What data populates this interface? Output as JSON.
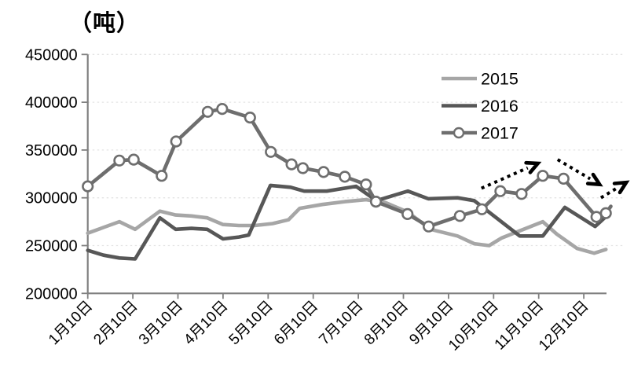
{
  "chart_data": {
    "type": "line",
    "title": "（吨）",
    "y_axis": {
      "min": 200000,
      "max": 450000,
      "tick_step": 50000,
      "tick_labels": [
        "200000",
        "250000",
        "300000",
        "350000",
        "400000",
        "450000"
      ],
      "gridlines": "dashed, at each 50000 above axis"
    },
    "x_axis": {
      "tick_labels": [
        "1月10日",
        "2月10日",
        "3月10日",
        "4月10日",
        "5月10日",
        "6月10日",
        "7月10日",
        "8月10日",
        "9月10日",
        "10月10日",
        "11月10日",
        "12月10日"
      ],
      "x_unit": "m = month index, m=n means n月10日 tick position"
    },
    "legend": {
      "position": "inside-upper-right",
      "entries": [
        "2015",
        "2016",
        "2017"
      ]
    },
    "colors": {
      "series2015": "#a6a6a6",
      "series2016": "#575757",
      "series2017": "#6e6e6e",
      "axis": "#808080",
      "gridline": "#e4e4e4",
      "text": "#000000",
      "arrow": "#000000",
      "marker_fill": "#ffffff"
    },
    "series": [
      {
        "name": "2015",
        "color": "#a6a6a6",
        "marker": "none",
        "points": [
          {
            "m": 1.0,
            "v": 263000
          },
          {
            "m": 1.35,
            "v": 269000
          },
          {
            "m": 1.7,
            "v": 275000
          },
          {
            "m": 2.05,
            "v": 267000
          },
          {
            "m": 2.6,
            "v": 286000
          },
          {
            "m": 2.95,
            "v": 282000
          },
          {
            "m": 3.3,
            "v": 281000
          },
          {
            "m": 3.65,
            "v": 279000
          },
          {
            "m": 4.0,
            "v": 272000
          },
          {
            "m": 4.35,
            "v": 271000
          },
          {
            "m": 4.7,
            "v": 271000
          },
          {
            "m": 5.1,
            "v": 273000
          },
          {
            "m": 5.45,
            "v": 277000
          },
          {
            "m": 5.7,
            "v": 289000
          },
          {
            "m": 6.2,
            "v": 293000
          },
          {
            "m": 6.7,
            "v": 296000
          },
          {
            "m": 7.17,
            "v": 298000
          },
          {
            "m": 7.6,
            "v": 295000
          },
          {
            "m": 8.1,
            "v": 285000
          },
          {
            "m": 8.6,
            "v": 267000
          },
          {
            "m": 9.2,
            "v": 260000
          },
          {
            "m": 9.57,
            "v": 252000
          },
          {
            "m": 9.9,
            "v": 250000
          },
          {
            "m": 10.18,
            "v": 258000
          },
          {
            "m": 11.09,
            "v": 275000
          },
          {
            "m": 11.4,
            "v": 262000
          },
          {
            "m": 11.85,
            "v": 247000
          },
          {
            "m": 12.23,
            "v": 242000
          },
          {
            "m": 12.49,
            "v": 246000
          }
        ]
      },
      {
        "name": "2016",
        "color": "#575757",
        "marker": "none",
        "points": [
          {
            "m": 1.0,
            "v": 245000
          },
          {
            "m": 1.35,
            "v": 240000
          },
          {
            "m": 1.7,
            "v": 237000
          },
          {
            "m": 2.05,
            "v": 236000
          },
          {
            "m": 2.6,
            "v": 279000
          },
          {
            "m": 2.95,
            "v": 267000
          },
          {
            "m": 3.3,
            "v": 268000
          },
          {
            "m": 3.65,
            "v": 267000
          },
          {
            "m": 4.0,
            "v": 257000
          },
          {
            "m": 4.35,
            "v": 259000
          },
          {
            "m": 4.57,
            "v": 261000
          },
          {
            "m": 5.05,
            "v": 313000
          },
          {
            "m": 5.5,
            "v": 311000
          },
          {
            "m": 5.8,
            "v": 307000
          },
          {
            "m": 6.3,
            "v": 307000
          },
          {
            "m": 6.95,
            "v": 312000
          },
          {
            "m": 7.4,
            "v": 297000
          },
          {
            "m": 8.1,
            "v": 307000
          },
          {
            "m": 8.55,
            "v": 299000
          },
          {
            "m": 9.2,
            "v": 300000
          },
          {
            "m": 9.57,
            "v": 297000
          },
          {
            "m": 10.58,
            "v": 260000
          },
          {
            "m": 11.09,
            "v": 260000
          },
          {
            "m": 11.58,
            "v": 290000
          },
          {
            "m": 12.25,
            "v": 270000
          },
          {
            "m": 12.55,
            "v": 283000
          }
        ]
      },
      {
        "name": "2017",
        "color": "#6e6e6e",
        "marker": "circle",
        "points": [
          {
            "m": 1.0,
            "v": 312000
          },
          {
            "m": 1.7,
            "v": 339000
          },
          {
            "m": 2.02,
            "v": 340000
          },
          {
            "m": 2.64,
            "v": 323000
          },
          {
            "m": 2.96,
            "v": 359000
          },
          {
            "m": 3.66,
            "v": 390000
          },
          {
            "m": 3.98,
            "v": 393000
          },
          {
            "m": 4.6,
            "v": 384000
          },
          {
            "m": 5.06,
            "v": 348000
          },
          {
            "m": 5.52,
            "v": 335000
          },
          {
            "m": 5.77,
            "v": 331000
          },
          {
            "m": 6.23,
            "v": 327000
          },
          {
            "m": 6.7,
            "v": 322000
          },
          {
            "m": 7.17,
            "v": 314000
          },
          {
            "m": 7.39,
            "v": 296000
          },
          {
            "m": 8.09,
            "v": 283000
          },
          {
            "m": 8.56,
            "v": 270000
          },
          {
            "m": 9.25,
            "v": 281000
          },
          {
            "m": 9.74,
            "v": 288000
          },
          {
            "m": 10.15,
            "v": 307000
          },
          {
            "m": 10.62,
            "v": 304000
          },
          {
            "m": 11.09,
            "v": 323000
          },
          {
            "m": 11.55,
            "v": 320000
          },
          {
            "m": 12.28,
            "v": 280000
          },
          {
            "m": 12.49,
            "v": 284000
          },
          {
            "m": 12.6,
            "v": 291000,
            "marker": false
          }
        ]
      }
    ],
    "annotations": {
      "arrows": [
        {
          "from": {
            "m": 9.73,
            "v": 310000
          },
          "to": {
            "m": 10.98,
            "v": 336000
          },
          "style": "dotted",
          "direction": "up-right"
        },
        {
          "from": {
            "m": 11.42,
            "v": 340000
          },
          "to": {
            "m": 12.35,
            "v": 314000
          },
          "style": "dotted",
          "direction": "down-right"
        },
        {
          "from": {
            "m": 12.38,
            "v": 300000
          },
          "to": {
            "m": 12.94,
            "v": 316000
          },
          "style": "dotted",
          "direction": "up-right"
        }
      ]
    }
  }
}
